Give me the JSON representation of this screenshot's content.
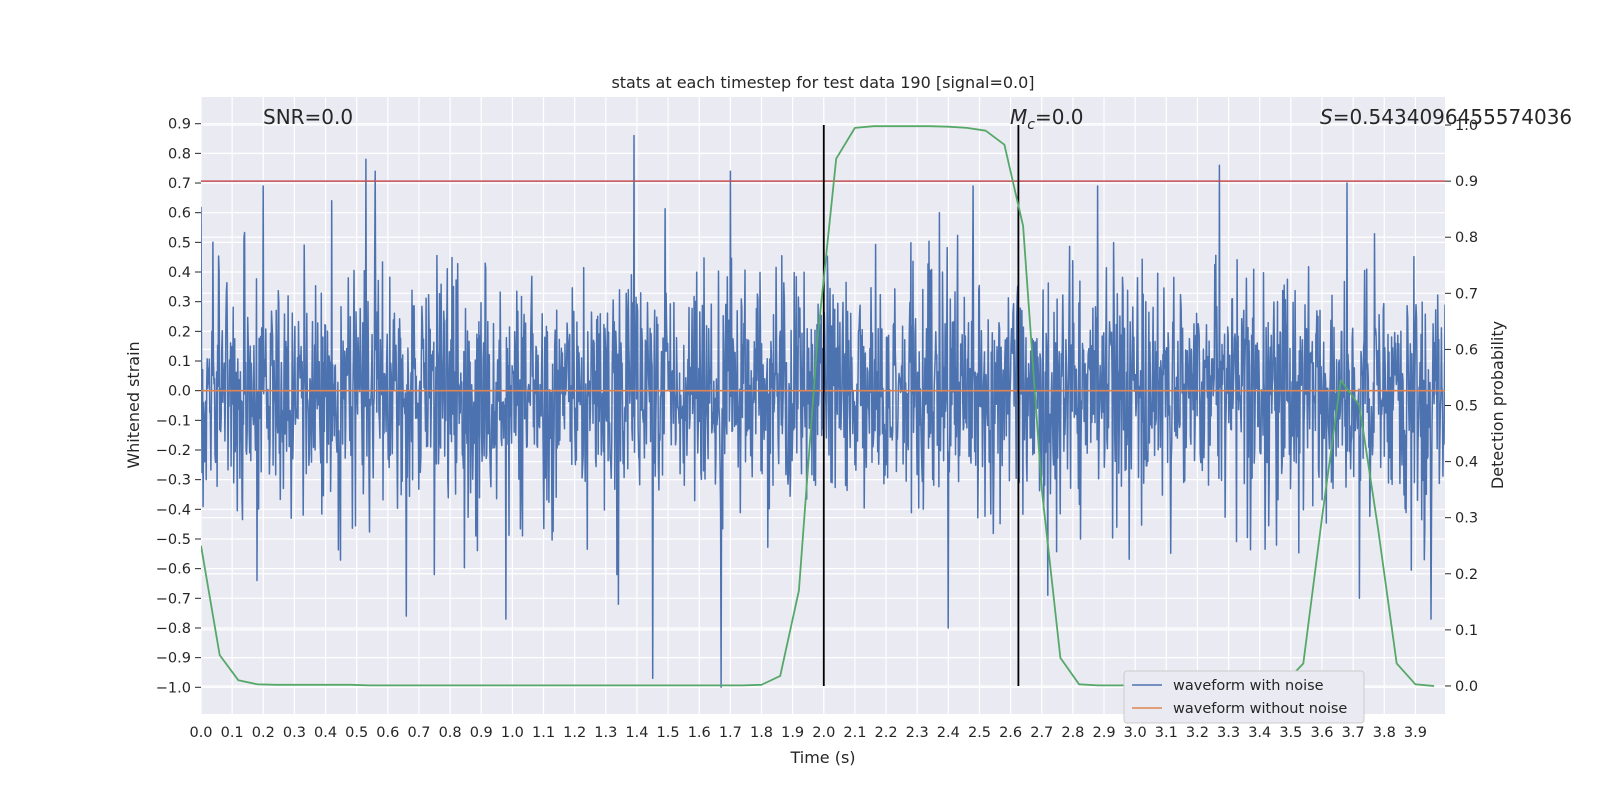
{
  "chart_data": {
    "type": "line",
    "title": "stats at each timestep for test data 190 [signal=0.0]",
    "xlabel": "Time (s)",
    "ylabel": "Whitened strain",
    "y2label": "Detection probability",
    "xlim": [
      0.0,
      3.995
    ],
    "ylim": [
      -1.09,
      0.99
    ],
    "y2lim": [
      -0.05,
      1.05
    ],
    "x_ticks": [
      "0.0",
      "0.1",
      "0.2",
      "0.3",
      "0.4",
      "0.5",
      "0.6",
      "0.7",
      "0.8",
      "0.9",
      "1.0",
      "1.1",
      "1.2",
      "1.3",
      "1.4",
      "1.5",
      "1.6",
      "1.7",
      "1.8",
      "1.9",
      "2.0",
      "2.1",
      "2.2",
      "2.3",
      "2.4",
      "2.5",
      "2.6",
      "2.7",
      "2.8",
      "2.9",
      "3.0",
      "3.1",
      "3.2",
      "3.3",
      "3.4",
      "3.5",
      "3.6",
      "3.7",
      "3.8",
      "3.9"
    ],
    "y_ticks": [
      "0.9",
      "0.8",
      "0.7",
      "0.6",
      "0.5",
      "0.4",
      "0.3",
      "0.2",
      "0.1",
      "0.0",
      "−0.1",
      "−0.2",
      "−0.3",
      "−0.4",
      "−0.5",
      "−0.6",
      "−0.7",
      "−0.8",
      "−0.9",
      "−1.0"
    ],
    "y2_ticks": [
      "1.0",
      "0.9",
      "0.8",
      "0.7",
      "0.6",
      "0.5",
      "0.4",
      "0.3",
      "0.2",
      "0.1",
      "0.0"
    ],
    "grid": true,
    "legend_position": "lower-right",
    "series": [
      {
        "name": "waveform with noise",
        "color": "#4c72b0",
        "axis": "left",
        "noise_amplitude": 0.2,
        "peaks": [
          {
            "x": 1.39,
            "y": 0.86
          },
          {
            "x": 1.67,
            "y": -1.0
          },
          {
            "x": 1.45,
            "y": -0.97
          },
          {
            "x": 0.53,
            "y": 0.78
          },
          {
            "x": 0.56,
            "y": 0.74
          },
          {
            "x": 1.7,
            "y": 0.74
          },
          {
            "x": 3.27,
            "y": 0.76
          },
          {
            "x": 0.2,
            "y": 0.69
          },
          {
            "x": 2.48,
            "y": 0.69
          },
          {
            "x": 2.88,
            "y": 0.69
          },
          {
            "x": 0.42,
            "y": 0.64
          },
          {
            "x": 0.66,
            "y": -0.76
          },
          {
            "x": 0.98,
            "y": -0.77
          },
          {
            "x": 2.4,
            "y": -0.8
          },
          {
            "x": 0.18,
            "y": -0.64
          },
          {
            "x": 3.68,
            "y": 0.7
          },
          {
            "x": 3.72,
            "y": -0.7
          },
          {
            "x": 3.95,
            "y": -0.77
          },
          {
            "x": 2.72,
            "y": -0.69
          },
          {
            "x": 1.34,
            "y": -0.72
          }
        ]
      },
      {
        "name": "waveform without noise",
        "color": "#dd8452",
        "axis": "left",
        "values_constant": 0.0
      },
      {
        "name": "",
        "color": "#55a868",
        "axis": "right",
        "x": [
          0.0,
          0.06,
          0.12,
          0.18,
          0.24,
          0.3,
          0.36,
          0.42,
          0.48,
          0.54,
          0.6,
          0.66,
          0.72,
          0.78,
          0.84,
          0.9,
          0.96,
          1.02,
          1.08,
          1.14,
          1.2,
          1.26,
          1.32,
          1.38,
          1.44,
          1.5,
          1.56,
          1.62,
          1.68,
          1.74,
          1.8,
          1.86,
          1.92,
          1.98,
          2.04,
          2.1,
          2.16,
          2.22,
          2.28,
          2.34,
          2.4,
          2.46,
          2.52,
          2.58,
          2.64,
          2.7,
          2.76,
          2.82,
          2.88,
          2.94,
          3.0,
          3.06,
          3.12,
          3.18,
          3.24,
          3.3,
          3.36,
          3.42,
          3.48,
          3.54,
          3.6,
          3.66,
          3.72,
          3.78,
          3.84,
          3.9,
          3.96
        ],
        "values": [
          0.25,
          0.055,
          0.01,
          0.003,
          0.002,
          0.002,
          0.002,
          0.002,
          0.002,
          0.001,
          0.001,
          0.001,
          0.001,
          0.001,
          0.001,
          0.001,
          0.001,
          0.001,
          0.001,
          0.001,
          0.001,
          0.001,
          0.001,
          0.001,
          0.001,
          0.001,
          0.001,
          0.001,
          0.001,
          0.001,
          0.002,
          0.018,
          0.17,
          0.62,
          0.94,
          0.995,
          0.998,
          0.998,
          0.998,
          0.998,
          0.997,
          0.995,
          0.99,
          0.965,
          0.82,
          0.35,
          0.05,
          0.003,
          0.001,
          0.001,
          0.001,
          0.001,
          0.001,
          0.001,
          0.001,
          0.001,
          0.001,
          0.001,
          0.005,
          0.04,
          0.3,
          0.545,
          0.5,
          0.28,
          0.04,
          0.003,
          0.0
        ]
      }
    ],
    "hline": {
      "axis": "right",
      "y": 0.9,
      "color": "#c44e52"
    },
    "vlines": [
      {
        "x": 2.0,
        "color": "#000000"
      },
      {
        "x": 2.625,
        "color": "#000000"
      }
    ],
    "annotations": {
      "snr": "SNR=0.0",
      "mc_symbol": "M",
      "mc_sub": "c",
      "mc_value": "=0.0",
      "s_symbol": "S",
      "s_value": "=0.5434096455574036"
    }
  }
}
